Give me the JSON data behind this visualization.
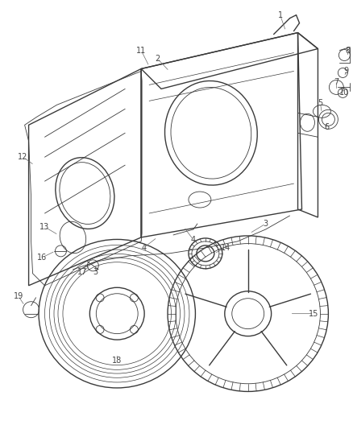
{
  "bg_color": "#ffffff",
  "line_color": "#3a3a3a",
  "label_color": "#444444",
  "leader_color": "#666666",
  "fig_width": 4.38,
  "fig_height": 5.33,
  "dpi": 100
}
